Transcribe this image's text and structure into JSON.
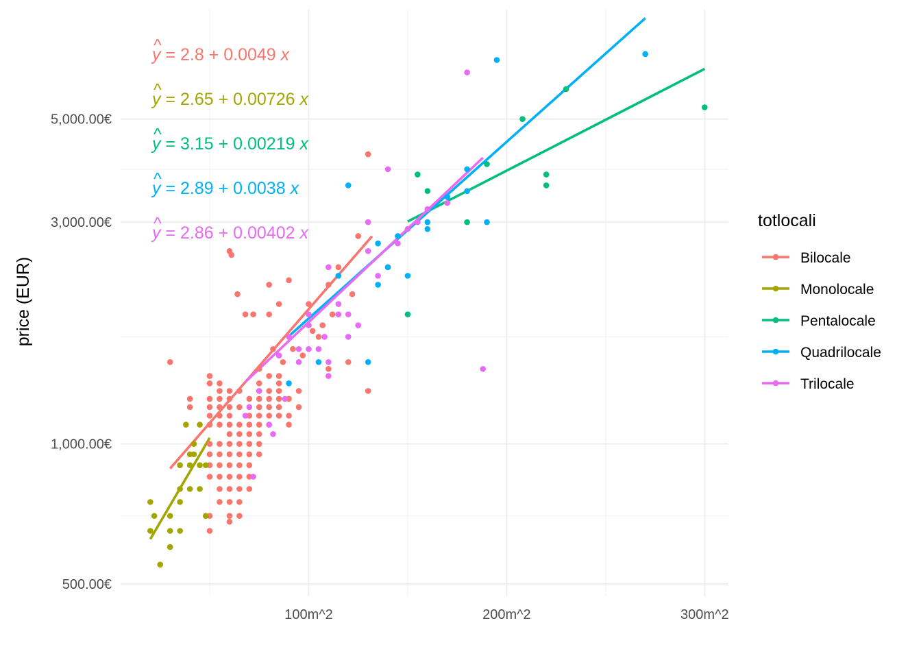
{
  "chart_data": {
    "type": "scatter",
    "title": "",
    "xlabel": "",
    "ylabel": "price (EUR)",
    "x_scale": "linear",
    "y_scale": "log10",
    "xlim": [
      5,
      312
    ],
    "ylim": [
      470,
      8600
    ],
    "x_ticks": [
      {
        "value": 100,
        "label": "100m^2"
      },
      {
        "value": 200,
        "label": "200m^2"
      },
      {
        "value": 300,
        "label": "300m^2"
      }
    ],
    "x_minor_ticks": [
      50,
      150,
      250
    ],
    "y_ticks": [
      {
        "value": 500,
        "label": "500.00€"
      },
      {
        "value": 1000,
        "label": "1,000.00€"
      },
      {
        "value": 3000,
        "label": "3,000.00€"
      },
      {
        "value": 5000,
        "label": "5,000.00€"
      }
    ],
    "y_minor_ticks": [
      700,
      1700,
      3900
    ],
    "grid": true,
    "legend": {
      "title": "totlocali",
      "position": "right"
    },
    "series": [
      {
        "name": "Bilocale",
        "color": "#F8766D",
        "equation": {
          "intercept": "2.8",
          "slope": "0.0049"
        },
        "fit": {
          "intercept": 2.8,
          "slope": 0.0049,
          "x_range": [
            30,
            132
          ]
        },
        "points": [
          [
            30,
            1500
          ],
          [
            40,
            1250
          ],
          [
            40,
            1200
          ],
          [
            50,
            1400
          ],
          [
            50,
            1350
          ],
          [
            50,
            1250
          ],
          [
            50,
            1200
          ],
          [
            50,
            1150
          ],
          [
            50,
            1100
          ],
          [
            50,
            1000
          ],
          [
            50,
            950
          ],
          [
            50,
            900
          ],
          [
            50,
            850
          ],
          [
            50,
            700
          ],
          [
            50,
            650
          ],
          [
            55,
            1350
          ],
          [
            55,
            1300
          ],
          [
            55,
            1250
          ],
          [
            55,
            1200
          ],
          [
            55,
            1150
          ],
          [
            55,
            1100
          ],
          [
            55,
            1000
          ],
          [
            55,
            950
          ],
          [
            55,
            900
          ],
          [
            55,
            850
          ],
          [
            55,
            800
          ],
          [
            55,
            750
          ],
          [
            60,
            1300
          ],
          [
            60,
            1250
          ],
          [
            60,
            1200
          ],
          [
            60,
            1150
          ],
          [
            60,
            1100
          ],
          [
            60,
            1050
          ],
          [
            60,
            1000
          ],
          [
            60,
            950
          ],
          [
            60,
            900
          ],
          [
            60,
            850
          ],
          [
            60,
            800
          ],
          [
            60,
            750
          ],
          [
            60,
            700
          ],
          [
            60,
            680
          ],
          [
            65,
            1300
          ],
          [
            65,
            1200
          ],
          [
            65,
            1100
          ],
          [
            65,
            1050
          ],
          [
            65,
            1000
          ],
          [
            65,
            950
          ],
          [
            65,
            900
          ],
          [
            65,
            850
          ],
          [
            65,
            800
          ],
          [
            65,
            750
          ],
          [
            65,
            700
          ],
          [
            70,
            1250
          ],
          [
            70,
            1150
          ],
          [
            70,
            1100
          ],
          [
            70,
            1050
          ],
          [
            70,
            1000
          ],
          [
            70,
            950
          ],
          [
            70,
            900
          ],
          [
            70,
            850
          ],
          [
            70,
            800
          ],
          [
            75,
            1350
          ],
          [
            75,
            1300
          ],
          [
            75,
            1250
          ],
          [
            75,
            1200
          ],
          [
            75,
            1150
          ],
          [
            75,
            1100
          ],
          [
            75,
            1050
          ],
          [
            75,
            1000
          ],
          [
            75,
            950
          ],
          [
            80,
            1400
          ],
          [
            80,
            1300
          ],
          [
            80,
            1250
          ],
          [
            80,
            1200
          ],
          [
            80,
            1150
          ],
          [
            80,
            1100
          ],
          [
            85,
            1400
          ],
          [
            85,
            1350
          ],
          [
            85,
            1300
          ],
          [
            85,
            1250
          ],
          [
            85,
            1200
          ],
          [
            85,
            1150
          ],
          [
            90,
            1250
          ],
          [
            90,
            1150
          ],
          [
            90,
            1100
          ],
          [
            95,
            1300
          ],
          [
            95,
            1200
          ],
          [
            105,
            1700
          ],
          [
            110,
            1450
          ],
          [
            120,
            1500
          ],
          [
            130,
            1300
          ],
          [
            60,
            2600
          ],
          [
            61,
            2550
          ],
          [
            64,
            2100
          ],
          [
            68,
            1900
          ],
          [
            72,
            1900
          ],
          [
            80,
            1900
          ],
          [
            85,
            2000
          ],
          [
            90,
            2250
          ],
          [
            100,
            2000
          ],
          [
            110,
            2200
          ],
          [
            115,
            2400
          ],
          [
            125,
            2800
          ],
          [
            130,
            4200
          ],
          [
            140,
            2400
          ],
          [
            75,
            1450
          ],
          [
            82,
            1600
          ],
          [
            87,
            1500
          ],
          [
            92,
            1600
          ],
          [
            97,
            1550
          ],
          [
            102,
            1750
          ],
          [
            107,
            1800
          ],
          [
            112,
            1900
          ],
          [
            122,
            2100
          ],
          [
            80,
            2200
          ]
        ]
      },
      {
        "name": "Monolocale",
        "color": "#A3A500",
        "equation": {
          "intercept": "2.65",
          "slope": "0.00726"
        },
        "fit": {
          "intercept": 2.65,
          "slope": 0.00726,
          "x_range": [
            20,
            50
          ]
        },
        "points": [
          [
            20,
            750
          ],
          [
            20,
            650
          ],
          [
            22,
            700
          ],
          [
            25,
            550
          ],
          [
            30,
            700
          ],
          [
            30,
            650
          ],
          [
            30,
            600
          ],
          [
            35,
            900
          ],
          [
            35,
            800
          ],
          [
            35,
            750
          ],
          [
            35,
            650
          ],
          [
            38,
            1100
          ],
          [
            40,
            950
          ],
          [
            40,
            900
          ],
          [
            40,
            800
          ],
          [
            42,
            1000
          ],
          [
            42,
            950
          ],
          [
            45,
            1100
          ],
          [
            45,
            900
          ],
          [
            45,
            800
          ],
          [
            48,
            900
          ],
          [
            48,
            700
          ]
        ]
      },
      {
        "name": "Pentalocale",
        "color": "#00BF7D",
        "equation": {
          "intercept": "3.15",
          "slope": "0.00219"
        },
        "fit": {
          "intercept": 3.15,
          "slope": 0.00219,
          "x_range": [
            150,
            300
          ]
        },
        "points": [
          [
            150,
            1900
          ],
          [
            155,
            3800
          ],
          [
            160,
            3500
          ],
          [
            180,
            3000
          ],
          [
            190,
            4000
          ],
          [
            208,
            5000
          ],
          [
            220,
            3600
          ],
          [
            220,
            3800
          ],
          [
            230,
            5800
          ],
          [
            300,
            5300
          ]
        ]
      },
      {
        "name": "Quadrilocale",
        "color": "#00B0F6",
        "equation": {
          "intercept": "2.89",
          "slope": "0.0038"
        },
        "fit": {
          "intercept": 2.89,
          "slope": 0.0038,
          "x_range": [
            90,
            270
          ]
        },
        "points": [
          [
            90,
            1350
          ],
          [
            105,
            1500
          ],
          [
            115,
            2300
          ],
          [
            120,
            3600
          ],
          [
            130,
            1500
          ],
          [
            135,
            2700
          ],
          [
            135,
            2200
          ],
          [
            140,
            2400
          ],
          [
            145,
            2800
          ],
          [
            150,
            2300
          ],
          [
            160,
            2900
          ],
          [
            160,
            3000
          ],
          [
            170,
            3400
          ],
          [
            180,
            3900
          ],
          [
            180,
            3500
          ],
          [
            190,
            3000
          ],
          [
            195,
            6700
          ],
          [
            270,
            6900
          ]
        ]
      },
      {
        "name": "Trilocale",
        "color": "#E76BF3",
        "equation": {
          "intercept": "2.86",
          "slope": "0.00402"
        },
        "fit": {
          "intercept": 2.86,
          "slope": 0.00402,
          "x_range": [
            68,
            188
          ]
        },
        "points": [
          [
            68,
            1150
          ],
          [
            70,
            1200
          ],
          [
            72,
            850
          ],
          [
            75,
            1300
          ],
          [
            80,
            1100
          ],
          [
            82,
            1050
          ],
          [
            85,
            1550
          ],
          [
            88,
            1250
          ],
          [
            90,
            1700
          ],
          [
            95,
            1500
          ],
          [
            95,
            1600
          ],
          [
            100,
            1900
          ],
          [
            100,
            1800
          ],
          [
            100,
            1600
          ],
          [
            105,
            1600
          ],
          [
            108,
            1700
          ],
          [
            110,
            2400
          ],
          [
            110,
            1500
          ],
          [
            110,
            1400
          ],
          [
            115,
            2000
          ],
          [
            115,
            1900
          ],
          [
            120,
            1900
          ],
          [
            120,
            1700
          ],
          [
            125,
            1800
          ],
          [
            130,
            2600
          ],
          [
            130,
            3000
          ],
          [
            135,
            2300
          ],
          [
            140,
            3900
          ],
          [
            145,
            2700
          ],
          [
            150,
            2900
          ],
          [
            155,
            3000
          ],
          [
            160,
            3200
          ],
          [
            170,
            3300
          ],
          [
            180,
            6300
          ],
          [
            188,
            1450
          ]
        ]
      }
    ]
  }
}
